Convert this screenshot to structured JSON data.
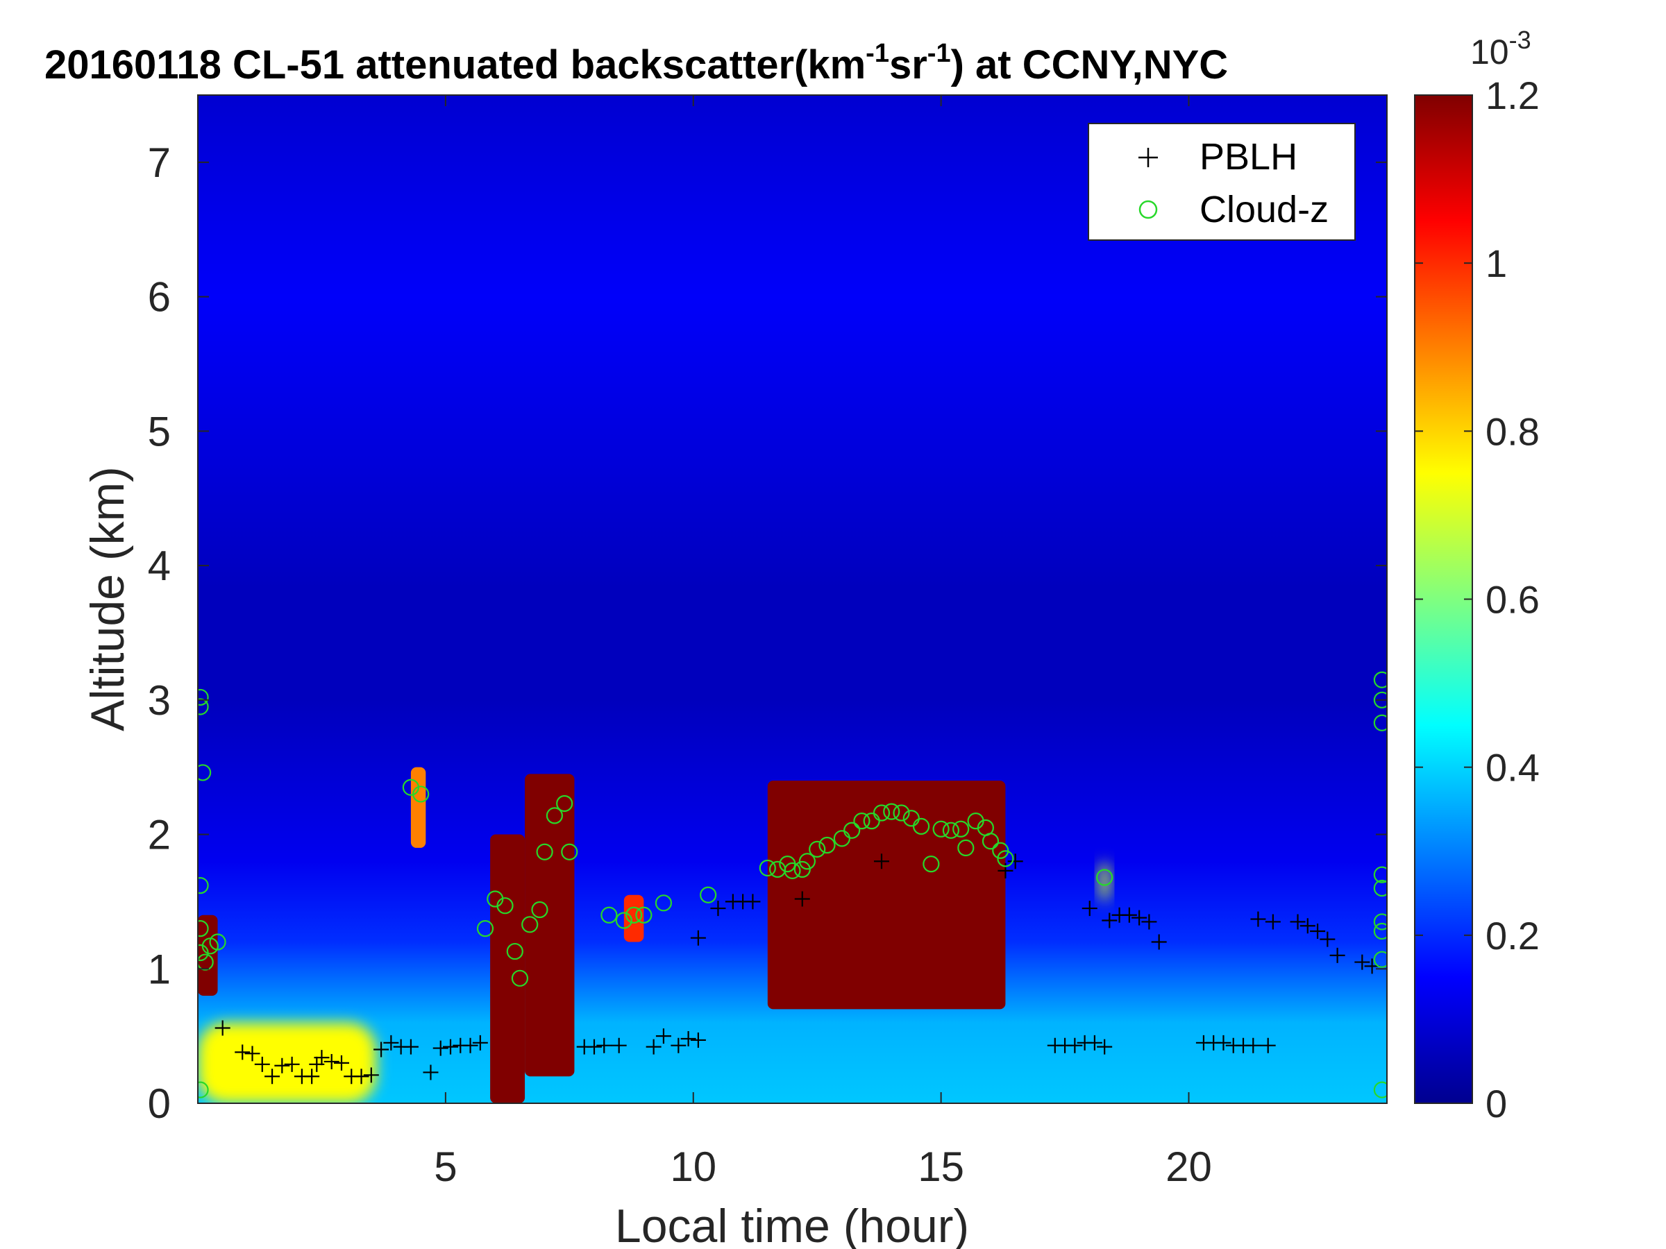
{
  "title_parts": {
    "prefix": "20160118  CL-51 attenuated backscatter(km",
    "exp1": "-1",
    "mid": "sr",
    "exp2": "-1",
    "suffix": ") at CCNY,NYC"
  },
  "colorbar": {
    "exponent_base": "10",
    "exponent_power": "-3",
    "min": 0,
    "max": 1.2,
    "ticks": [
      0,
      0.2,
      0.4,
      0.6,
      0.8,
      1,
      1.2
    ],
    "tick_labels": [
      "0",
      "0.2",
      "0.4",
      "0.6",
      "0.8",
      "1",
      "1.2"
    ],
    "colormap": "jet"
  },
  "chart_data": {
    "type": "heatmap",
    "title": "20160118  CL-51 attenuated backscatter(km-1sr-1) at CCNY,NYC",
    "xlabel": "Local time (hour)",
    "ylabel": "Altitude (km)",
    "xlim": [
      0,
      24
    ],
    "ylim": [
      0,
      7.5
    ],
    "x_ticks": [
      5,
      10,
      15,
      20
    ],
    "y_ticks": [
      0,
      1,
      2,
      3,
      4,
      5,
      6,
      7
    ],
    "clim": [
      0,
      0.0012
    ],
    "grid": false,
    "legend_position": "top-right",
    "background_profile": [
      {
        "z": 0.0,
        "v": 0.32
      },
      {
        "z": 0.6,
        "v": 0.3
      },
      {
        "z": 1.2,
        "v": 0.17
      },
      {
        "z": 1.8,
        "v": 0.11
      },
      {
        "z": 3.0,
        "v": 0.06
      },
      {
        "z": 3.8,
        "v": 0.06
      },
      {
        "z": 4.8,
        "v": 0.09
      },
      {
        "z": 6.0,
        "v": 0.12
      },
      {
        "z": 7.5,
        "v": 0.08
      }
    ],
    "high_backscatter_regions": [
      {
        "label": "near-surface aerosol",
        "t_range": [
          0.0,
          3.6
        ],
        "z_range": [
          0.0,
          0.6
        ],
        "peak": 0.75
      },
      {
        "label": "cloud",
        "t_range": [
          0.0,
          0.4
        ],
        "z_range": [
          0.8,
          1.4
        ],
        "peak": 1.2
      },
      {
        "label": "cloud",
        "t_range": [
          4.3,
          4.6
        ],
        "z_range": [
          1.9,
          2.5
        ],
        "peak": 0.9
      },
      {
        "label": "cloud",
        "t_range": [
          5.9,
          6.6
        ],
        "z_range": [
          0.0,
          2.0
        ],
        "peak": 1.2
      },
      {
        "label": "cloud",
        "t_range": [
          6.6,
          7.6
        ],
        "z_range": [
          0.2,
          2.45
        ],
        "peak": 1.2
      },
      {
        "label": "cloud",
        "t_range": [
          8.6,
          9.0
        ],
        "z_range": [
          1.2,
          1.55
        ],
        "peak": 1.0
      },
      {
        "label": "cloud",
        "t_range": [
          11.5,
          16.3
        ],
        "z_range": [
          0.7,
          2.4
        ],
        "peak": 1.2
      },
      {
        "label": "cloud",
        "t_range": [
          18.2,
          18.4
        ],
        "z_range": [
          1.5,
          1.8
        ],
        "peak": 0.7
      }
    ],
    "series": [
      {
        "name": "PBLH",
        "marker": "+",
        "color": "#000000",
        "points": [
          [
            0.5,
            0.56
          ],
          [
            0.9,
            0.38
          ],
          [
            1.1,
            0.37
          ],
          [
            1.3,
            0.29
          ],
          [
            1.5,
            0.2
          ],
          [
            1.7,
            0.28
          ],
          [
            1.9,
            0.29
          ],
          [
            2.1,
            0.2
          ],
          [
            2.3,
            0.2
          ],
          [
            2.4,
            0.29
          ],
          [
            2.5,
            0.34
          ],
          [
            2.7,
            0.31
          ],
          [
            2.9,
            0.3
          ],
          [
            3.1,
            0.2
          ],
          [
            3.3,
            0.2
          ],
          [
            3.5,
            0.21
          ],
          [
            3.7,
            0.4
          ],
          [
            3.9,
            0.45
          ],
          [
            4.1,
            0.42
          ],
          [
            4.3,
            0.42
          ],
          [
            4.7,
            0.23
          ],
          [
            4.9,
            0.41
          ],
          [
            5.1,
            0.42
          ],
          [
            5.3,
            0.43
          ],
          [
            5.5,
            0.43
          ],
          [
            5.7,
            0.45
          ],
          [
            7.8,
            0.42
          ],
          [
            8.0,
            0.42
          ],
          [
            8.2,
            0.43
          ],
          [
            8.5,
            0.43
          ],
          [
            9.2,
            0.42
          ],
          [
            9.4,
            0.5
          ],
          [
            9.7,
            0.43
          ],
          [
            9.9,
            0.48
          ],
          [
            10.1,
            0.47
          ],
          [
            10.1,
            1.23
          ],
          [
            10.5,
            1.45
          ],
          [
            10.8,
            1.5
          ],
          [
            11.0,
            1.5
          ],
          [
            11.2,
            1.5
          ],
          [
            12.2,
            1.52
          ],
          [
            13.8,
            1.8
          ],
          [
            16.3,
            1.73
          ],
          [
            16.5,
            1.8
          ],
          [
            17.3,
            0.43
          ],
          [
            17.5,
            0.43
          ],
          [
            17.7,
            0.43
          ],
          [
            17.9,
            0.45
          ],
          [
            18.1,
            0.45
          ],
          [
            18.3,
            0.42
          ],
          [
            18.0,
            1.45
          ],
          [
            18.4,
            1.36
          ],
          [
            18.6,
            1.4
          ],
          [
            18.8,
            1.4
          ],
          [
            19.0,
            1.38
          ],
          [
            19.2,
            1.35
          ],
          [
            19.4,
            1.2
          ],
          [
            20.3,
            0.45
          ],
          [
            20.5,
            0.45
          ],
          [
            20.7,
            0.45
          ],
          [
            20.9,
            0.43
          ],
          [
            21.1,
            0.43
          ],
          [
            21.3,
            0.43
          ],
          [
            21.6,
            0.43
          ],
          [
            21.4,
            1.37
          ],
          [
            21.7,
            1.35
          ],
          [
            22.2,
            1.35
          ],
          [
            22.4,
            1.32
          ],
          [
            22.6,
            1.28
          ],
          [
            22.8,
            1.22
          ],
          [
            23.0,
            1.1
          ],
          [
            23.5,
            1.05
          ],
          [
            23.7,
            1.02
          ]
        ]
      },
      {
        "name": "Cloud-z",
        "marker": "o",
        "color": "#27d82a",
        "points": [
          [
            0.05,
            3.02
          ],
          [
            0.05,
            2.95
          ],
          [
            0.1,
            2.46
          ],
          [
            0.05,
            1.62
          ],
          [
            0.05,
            1.3
          ],
          [
            0.05,
            1.12
          ],
          [
            0.05,
            0.1
          ],
          [
            0.15,
            1.05
          ],
          [
            0.25,
            1.17
          ],
          [
            0.4,
            1.2
          ],
          [
            4.3,
            2.35
          ],
          [
            4.5,
            2.3
          ],
          [
            5.8,
            1.3
          ],
          [
            6.0,
            1.52
          ],
          [
            6.2,
            1.47
          ],
          [
            6.4,
            1.13
          ],
          [
            6.5,
            0.93
          ],
          [
            6.7,
            1.33
          ],
          [
            6.9,
            1.44
          ],
          [
            7.0,
            1.87
          ],
          [
            7.2,
            2.14
          ],
          [
            7.4,
            2.23
          ],
          [
            7.5,
            1.87
          ],
          [
            8.3,
            1.4
          ],
          [
            8.6,
            1.36
          ],
          [
            8.8,
            1.4
          ],
          [
            9.0,
            1.4
          ],
          [
            9.4,
            1.49
          ],
          [
            10.3,
            1.55
          ],
          [
            11.5,
            1.75
          ],
          [
            11.7,
            1.74
          ],
          [
            11.9,
            1.78
          ],
          [
            12.0,
            1.73
          ],
          [
            12.2,
            1.74
          ],
          [
            12.3,
            1.8
          ],
          [
            12.5,
            1.89
          ],
          [
            12.7,
            1.92
          ],
          [
            13.0,
            1.97
          ],
          [
            13.2,
            2.03
          ],
          [
            13.4,
            2.1
          ],
          [
            13.6,
            2.1
          ],
          [
            13.8,
            2.16
          ],
          [
            14.0,
            2.17
          ],
          [
            14.2,
            2.16
          ],
          [
            14.4,
            2.12
          ],
          [
            14.6,
            2.06
          ],
          [
            14.8,
            1.78
          ],
          [
            15.0,
            2.04
          ],
          [
            15.2,
            2.03
          ],
          [
            15.4,
            2.04
          ],
          [
            15.5,
            1.9
          ],
          [
            15.7,
            2.1
          ],
          [
            15.9,
            2.05
          ],
          [
            16.0,
            1.95
          ],
          [
            16.2,
            1.88
          ],
          [
            16.3,
            1.82
          ],
          [
            18.3,
            1.68
          ],
          [
            23.9,
            3.15
          ],
          [
            23.9,
            3.0
          ],
          [
            23.9,
            2.83
          ],
          [
            23.9,
            1.7
          ],
          [
            23.9,
            1.6
          ],
          [
            23.9,
            1.35
          ],
          [
            23.9,
            1.28
          ],
          [
            23.9,
            1.07
          ],
          [
            23.9,
            0.1
          ]
        ]
      }
    ]
  }
}
